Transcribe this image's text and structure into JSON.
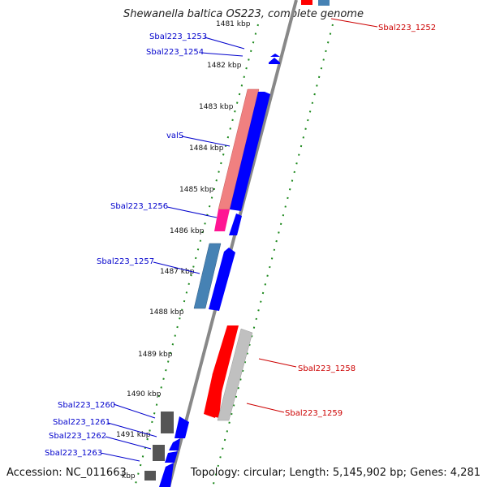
{
  "title": "Shewanella baltica OS223, complete genome",
  "footer": {
    "accession": "Accession: NC_011663",
    "topology": "Topology: circular; Length: 5,145,902 bp; Genes: 4,281"
  },
  "colors": {
    "backbone": "#888888",
    "tick_dots": "#1f8a1f",
    "left_label": "#0000cc",
    "right_label": "#cc0000"
  },
  "kbp_ticks": [
    {
      "label": "1481 kbp",
      "pos_kb": 1481
    },
    {
      "label": "1482 kbp",
      "pos_kb": 1482
    },
    {
      "label": "1483 kbp",
      "pos_kb": 1483
    },
    {
      "label": "1484 kbp",
      "pos_kb": 1484
    },
    {
      "label": "1485 kbp",
      "pos_kb": 1485
    },
    {
      "label": "1486 kbp",
      "pos_kb": 1486
    },
    {
      "label": "1487 kbp",
      "pos_kb": 1487
    },
    {
      "label": "1488 kbp",
      "pos_kb": 1488
    },
    {
      "label": "1489 kbp",
      "pos_kb": 1489
    },
    {
      "label": "1490 kbp",
      "pos_kb": 1490
    },
    {
      "label": "1491 kbp",
      "pos_kb": 1491
    },
    {
      "label": "kbp",
      "pos_kb": 1492
    }
  ],
  "left_labels": [
    "Sbal223_1253",
    "Sbal223_1254",
    "valS",
    "Sbal223_1256",
    "Sbal223_1257",
    "Sbal223_1260",
    "Sbal223_1261",
    "Sbal223_1262",
    "Sbal223_1263"
  ],
  "right_labels": [
    "Sbal223_1252",
    "Sbal223_1258",
    "Sbal223_1259"
  ],
  "features": [
    {
      "color": "#f08080",
      "kind": "rect"
    },
    {
      "color": "#ff1493",
      "kind": "rect"
    },
    {
      "color": "#4682b4",
      "kind": "rect"
    },
    {
      "color": "#ff0000",
      "kind": "rect"
    },
    {
      "color": "#c0c0c0",
      "kind": "rect"
    },
    {
      "color": "#555555",
      "kind": "rect"
    },
    {
      "color": "#0000ff",
      "kind": "arrow"
    }
  ]
}
